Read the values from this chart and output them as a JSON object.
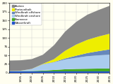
{
  "title": "",
  "xlabel": "",
  "ylabel": "",
  "years": [
    1990,
    1995,
    2000,
    2005,
    2010,
    2015,
    2020,
    2025,
    2030,
    2035
  ],
  "series": {
    "Wasserkraft": [
      4,
      4,
      4,
      4,
      4,
      4,
      4,
      4,
      4,
      4
    ],
    "Biomasse": [
      0.5,
      0.8,
      1,
      2,
      4,
      6,
      7,
      7.5,
      8,
      8
    ],
    "Windkraft onshore": [
      0.5,
      1,
      6,
      18,
      22,
      28,
      32,
      36,
      38,
      40
    ],
    "Windkraft offshore": [
      0,
      0,
      0,
      0.5,
      1,
      3,
      6,
      9,
      12,
      15
    ],
    "Photovoltaik": [
      0,
      0,
      0.2,
      1,
      8,
      22,
      32,
      38,
      42,
      45
    ],
    "Andere": [
      30,
      30,
      28,
      26,
      40,
      55,
      65,
      72,
      76,
      80
    ]
  },
  "colors": {
    "Wasserkraft": "#2255cc",
    "Biomasse": "#44aa22",
    "Windkraft onshore": "#aaccee",
    "Windkraft offshore": "#6688bb",
    "Photovoltaik": "#eeee00",
    "Andere": "#888888"
  },
  "legend_order": [
    "Andere",
    "Photovoltaik",
    "Windkraft offshore",
    "Windkraft onshore",
    "Biomasse",
    "Wasserkraft"
  ],
  "stack_order": [
    "Wasserkraft",
    "Biomasse",
    "Windkraft onshore",
    "Windkraft offshore",
    "Photovoltaik",
    "Andere"
  ],
  "background_color": "#fffef0",
  "plot_bg": "#fffff0",
  "xlim": [
    1990,
    2035
  ],
  "ylim_auto": true,
  "xticks": [
    1995,
    2000,
    2005,
    2010,
    2015,
    2020,
    2025,
    2030,
    2035
  ],
  "grid": true
}
